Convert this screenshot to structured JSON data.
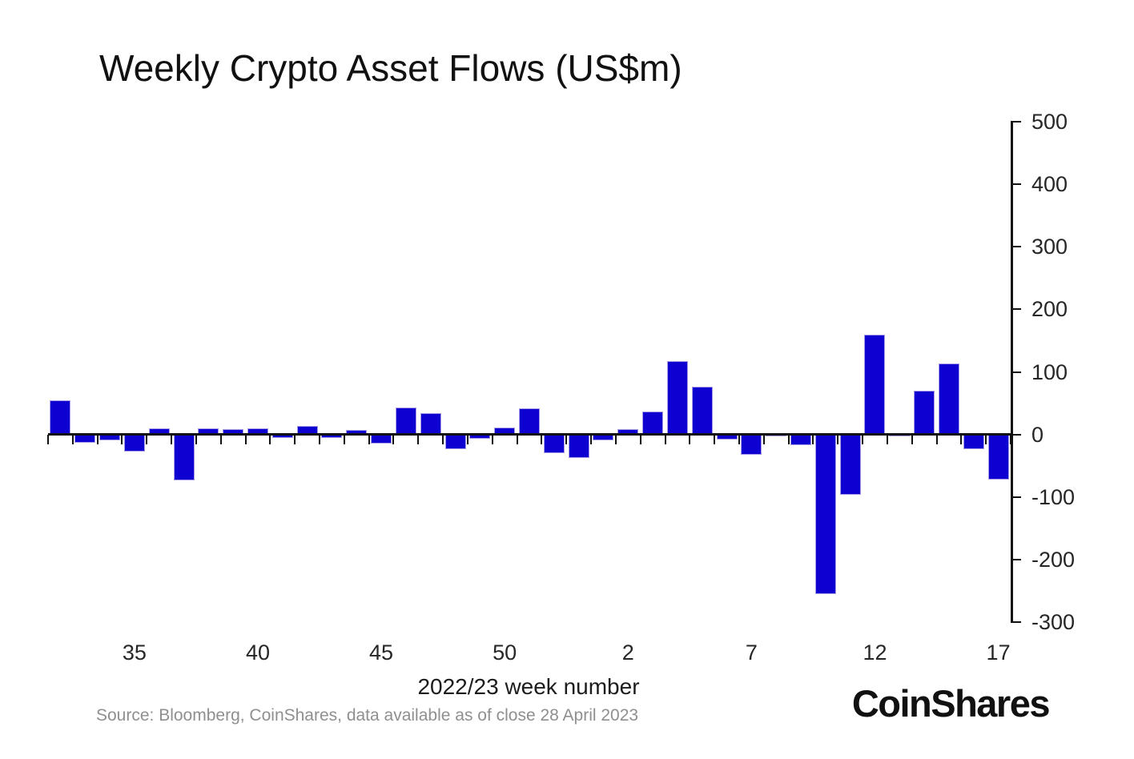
{
  "title": "Weekly Crypto Asset Flows (US$m)",
  "source": "Source: Bloomberg, CoinShares, data available as of close 28 April 2023",
  "brand": "CoinShares",
  "colors": {
    "bar_fill": "#0d00d0",
    "bar_edge": "#a99ae3",
    "axis": "#111111",
    "tick_label": "#262626",
    "muted_text": "#8f8f8f",
    "background": "#ffffff"
  },
  "chart_data": {
    "type": "bar",
    "title": "Weekly Crypto Asset Flows (US$m)",
    "xlabel": "2022/23 week number",
    "ylabel": "",
    "ylim": [
      -300,
      500
    ],
    "yticks": [
      500,
      400,
      300,
      200,
      100,
      0,
      -100,
      -200,
      -300
    ],
    "grid": false,
    "legend_position": "none",
    "categories": [
      "32",
      "33",
      "34",
      "35",
      "36",
      "37",
      "38",
      "39",
      "40",
      "41",
      "42",
      "43",
      "44",
      "45",
      "46",
      "47",
      "48",
      "49",
      "50",
      "51",
      "52",
      "53",
      "1",
      "2",
      "3",
      "4",
      "5",
      "6",
      "7",
      "8",
      "9",
      "10",
      "11",
      "12",
      "13",
      "14",
      "15",
      "16",
      "17"
    ],
    "values": [
      54,
      -13,
      -9,
      -27,
      10,
      -73,
      10,
      8,
      10,
      -5,
      13,
      -5,
      7,
      -15,
      43,
      34,
      -24,
      -7,
      11,
      42,
      -30,
      -38,
      -10,
      8,
      37,
      117,
      76,
      -8,
      -32,
      -2,
      -17,
      -255,
      -96,
      160,
      -2,
      70,
      114,
      -23,
      -72
    ],
    "xtick_labels": [
      "35",
      "40",
      "45",
      "50",
      "2",
      "7",
      "12",
      "17"
    ],
    "xtick_indices": [
      3,
      8,
      13,
      18,
      23,
      28,
      33,
      38
    ]
  }
}
